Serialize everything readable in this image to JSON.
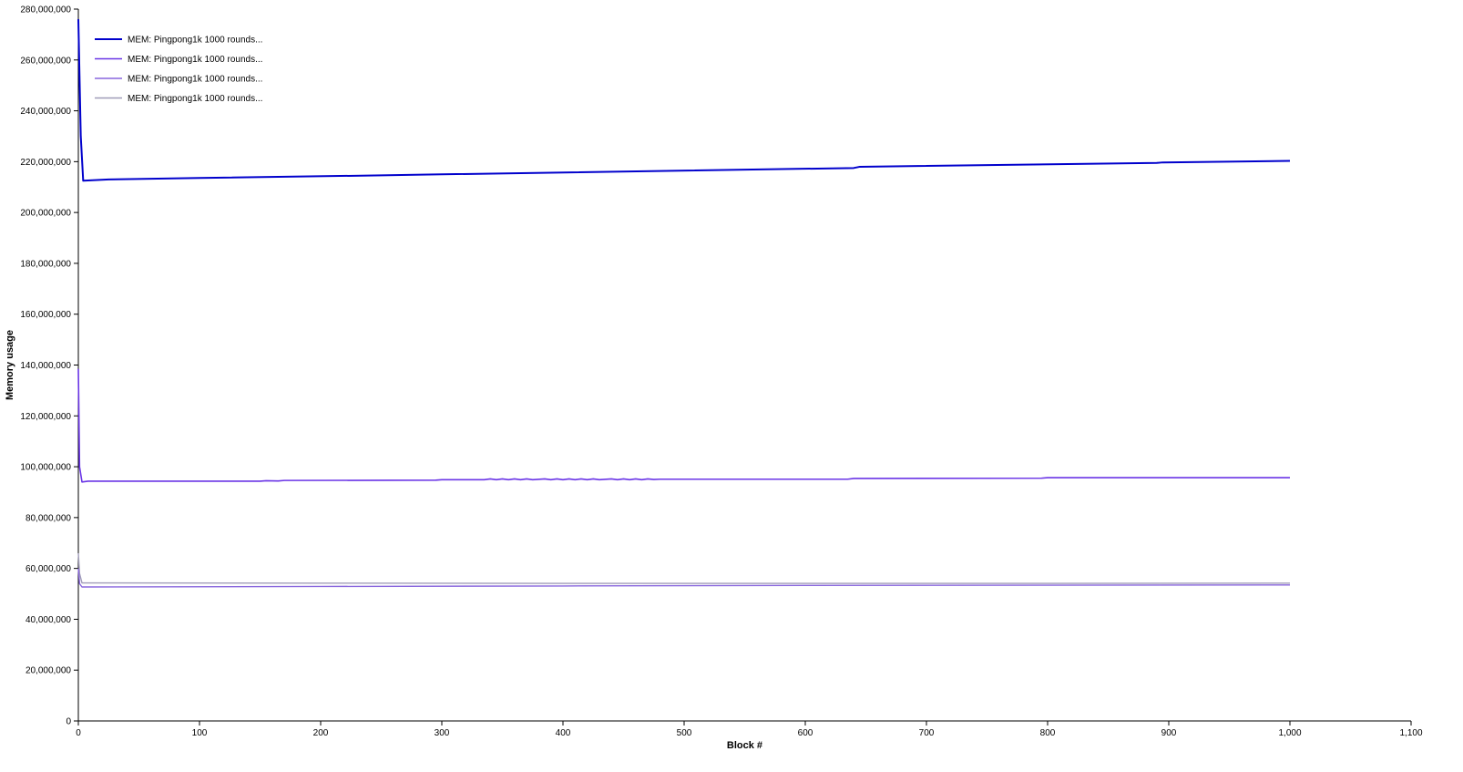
{
  "chart_data": {
    "type": "line",
    "xlabel": "Block #",
    "ylabel": "Memory usage",
    "xlim": [
      0,
      1100
    ],
    "ylim": [
      0,
      280000000
    ],
    "x_ticks": [
      0,
      100,
      200,
      300,
      400,
      500,
      600,
      700,
      800,
      900,
      1000,
      1100
    ],
    "x_tick_labels": [
      "0",
      "100",
      "200",
      "300",
      "400",
      "500",
      "600",
      "700",
      "800",
      "900",
      "1,000",
      "1,100"
    ],
    "y_ticks": [
      0,
      20000000,
      40000000,
      60000000,
      80000000,
      100000000,
      120000000,
      140000000,
      160000000,
      180000000,
      200000000,
      220000000,
      240000000,
      260000000,
      280000000
    ],
    "y_tick_labels": [
      "0",
      "20,000,000",
      "40,000,000",
      "60,000,000",
      "80,000,000",
      "100,000,000",
      "120,000,000",
      "140,000,000",
      "160,000,000",
      "180,000,000",
      "200,000,000",
      "220,000,000",
      "240,000,000",
      "260,000,000",
      "280,000,000"
    ],
    "grid": false,
    "legend_position": "top-left",
    "series": [
      {
        "name": "MEM: Pingpong1k 1000 rounds...",
        "color": "#0000cc",
        "x": [
          0,
          2,
          4,
          25,
          100,
          250,
          300,
          640,
          645,
          890,
          895,
          1000
        ],
        "y": [
          276000000,
          230000000,
          212500000,
          213000000,
          213600000,
          214600000,
          215000000,
          217500000,
          218000000,
          219500000,
          219700000,
          220300000
        ]
      },
      {
        "name": "MEM: Pingpong1k 1000 rounds...",
        "color": "#6a35e6",
        "x": [
          0,
          1,
          3,
          8,
          150,
          155,
          165,
          170,
          295,
          300,
          335,
          340,
          345,
          350,
          355,
          360,
          365,
          370,
          375,
          385,
          390,
          395,
          400,
          405,
          410,
          415,
          420,
          425,
          430,
          440,
          445,
          450,
          455,
          460,
          465,
          470,
          475,
          480,
          635,
          640,
          795,
          800,
          1000
        ],
        "y": [
          138500000,
          100000000,
          94000000,
          94300000,
          94300000,
          94500000,
          94400000,
          94600000,
          94700000,
          94900000,
          94900000,
          95200000,
          94900000,
          95200000,
          94900000,
          95200000,
          94900000,
          95200000,
          94900000,
          95200000,
          94900000,
          95200000,
          94900000,
          95200000,
          94900000,
          95200000,
          94900000,
          95200000,
          94900000,
          95200000,
          94900000,
          95200000,
          94900000,
          95200000,
          94900000,
          95200000,
          95000000,
          95100000,
          95100000,
          95400000,
          95500000,
          95700000,
          95700000
        ]
      },
      {
        "name": "MEM: Pingpong1k 1000 rounds...",
        "color": "#8866dd",
        "x": [
          0,
          1,
          3,
          200,
          400,
          600,
          800,
          1000
        ],
        "y": [
          60000000,
          54000000,
          52700000,
          52900000,
          53100000,
          53300000,
          53400000,
          53500000
        ]
      },
      {
        "name": "MEM: Pingpong1k 1000 rounds...",
        "color": "#a09cb8",
        "x": [
          0,
          1,
          3,
          200,
          400,
          600,
          800,
          1000
        ],
        "y": [
          66000000,
          58000000,
          54300000,
          54200000,
          54100000,
          54100000,
          54100000,
          54200000
        ]
      }
    ]
  }
}
